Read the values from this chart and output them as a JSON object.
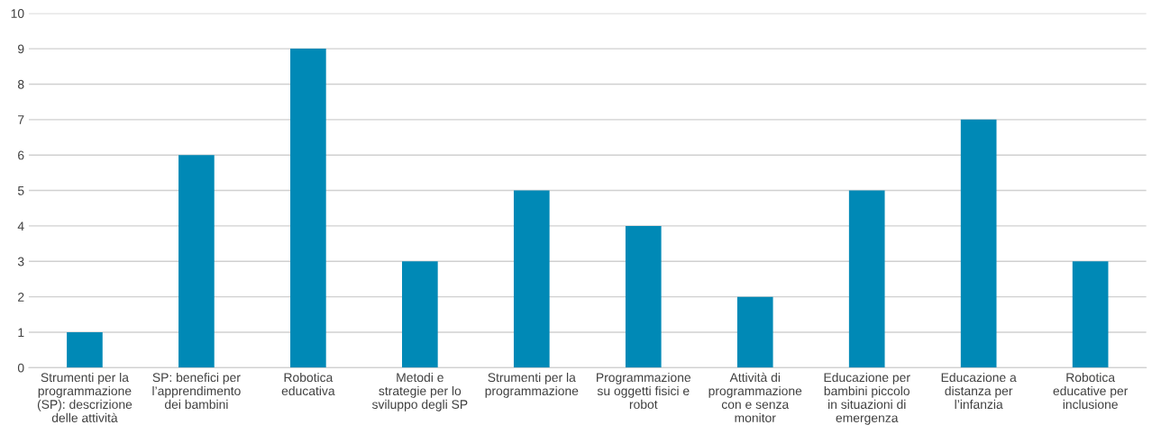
{
  "chart_data": {
    "type": "bar",
    "categories": [
      "Strumenti per la\nprogrammazione\n(SP): descrizione\ndelle attività",
      "SP: benefici per\nl’apprendimento\ndei bambini",
      "Robotica\neducativa",
      "Metodi e\nstrategie per lo\nsviluppo degli SP",
      "Strumenti per la\nprogrammazione",
      "Programmazione\nsu oggetti fisici e\nrobot",
      "Attività di\nprogrammazione\ncon e senza\nmonitor",
      "Educazione per\nbambini piccolo\nin situazioni di\nemergenza",
      "Educazione a\ndistanza per\nl’infanzia",
      "Robotica\neducative per\ninclusione"
    ],
    "values": [
      1,
      6,
      9,
      3,
      5,
      4,
      2,
      5,
      7,
      3
    ],
    "color": "#0089b6",
    "ylim": [
      0,
      10
    ],
    "yticks": [
      0,
      1,
      2,
      3,
      4,
      5,
      6,
      7,
      8,
      9,
      10
    ],
    "grid": "y"
  }
}
